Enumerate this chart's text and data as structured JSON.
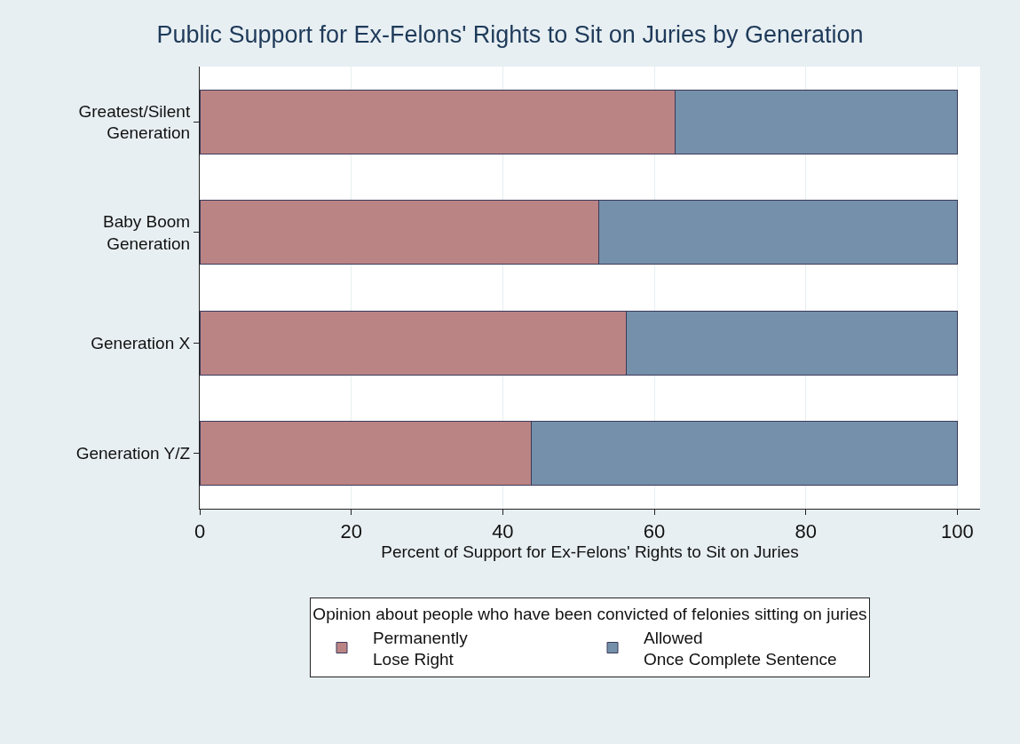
{
  "chart_data": {
    "type": "bar",
    "orientation": "horizontal",
    "stacked": true,
    "title": "Public Support for Ex-Felons' Rights to Sit on Juries by Generation",
    "xlabel": "Percent of Support for Ex-Felons' Rights to Sit on Juries",
    "legend_title": "Opinion about people who have been convicted of felonies sitting on juries",
    "categories": [
      "Greatest/Silent\nGeneration",
      "Baby Boom\nGeneration",
      "Generation X",
      "Generation Y/Z"
    ],
    "series": [
      {
        "name": "Permanently\nLose Right",
        "color": "#bb8484",
        "values": [
          62.8,
          52.7,
          56.3,
          43.8
        ]
      },
      {
        "name": "Allowed\nOnce Complete Sentence",
        "color": "#7590aa",
        "values": [
          37.2,
          47.3,
          43.7,
          56.2
        ]
      }
    ],
    "xlim": [
      0,
      103
    ],
    "xticks": [
      0,
      20,
      40,
      60,
      80,
      100
    ],
    "grid": "x",
    "legend": "bottom"
  }
}
